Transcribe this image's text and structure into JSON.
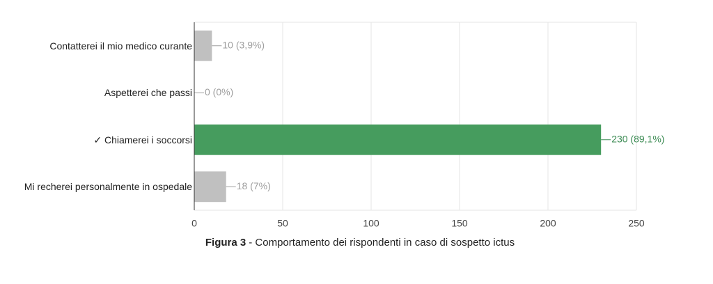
{
  "chart_data": {
    "type": "barh",
    "categories": [
      "Contatterei il mio medico curante",
      "Aspetterei che passi",
      "✓ Chiamerei i soccorsi",
      "Mi recherei personalmente in ospedale"
    ],
    "values": [
      10,
      0,
      230,
      18
    ],
    "value_labels": [
      "10 (3,9%)",
      "0 (0%)",
      "230 (89,1%)",
      "18 (7%)"
    ],
    "colors": [
      "#c0c0c0",
      "#c0c0c0",
      "#469c5e",
      "#c0c0c0"
    ],
    "label_colors": [
      "#9e9e9e",
      "#9e9e9e",
      "#3a8a52",
      "#9e9e9e"
    ],
    "xlim": [
      0,
      250
    ],
    "xticks": [
      0,
      50,
      100,
      150,
      200,
      250
    ],
    "grid": true,
    "caption_label": "Figura 3",
    "caption": "- Comportamento dei rispondenti in caso di sospetto ictus"
  }
}
